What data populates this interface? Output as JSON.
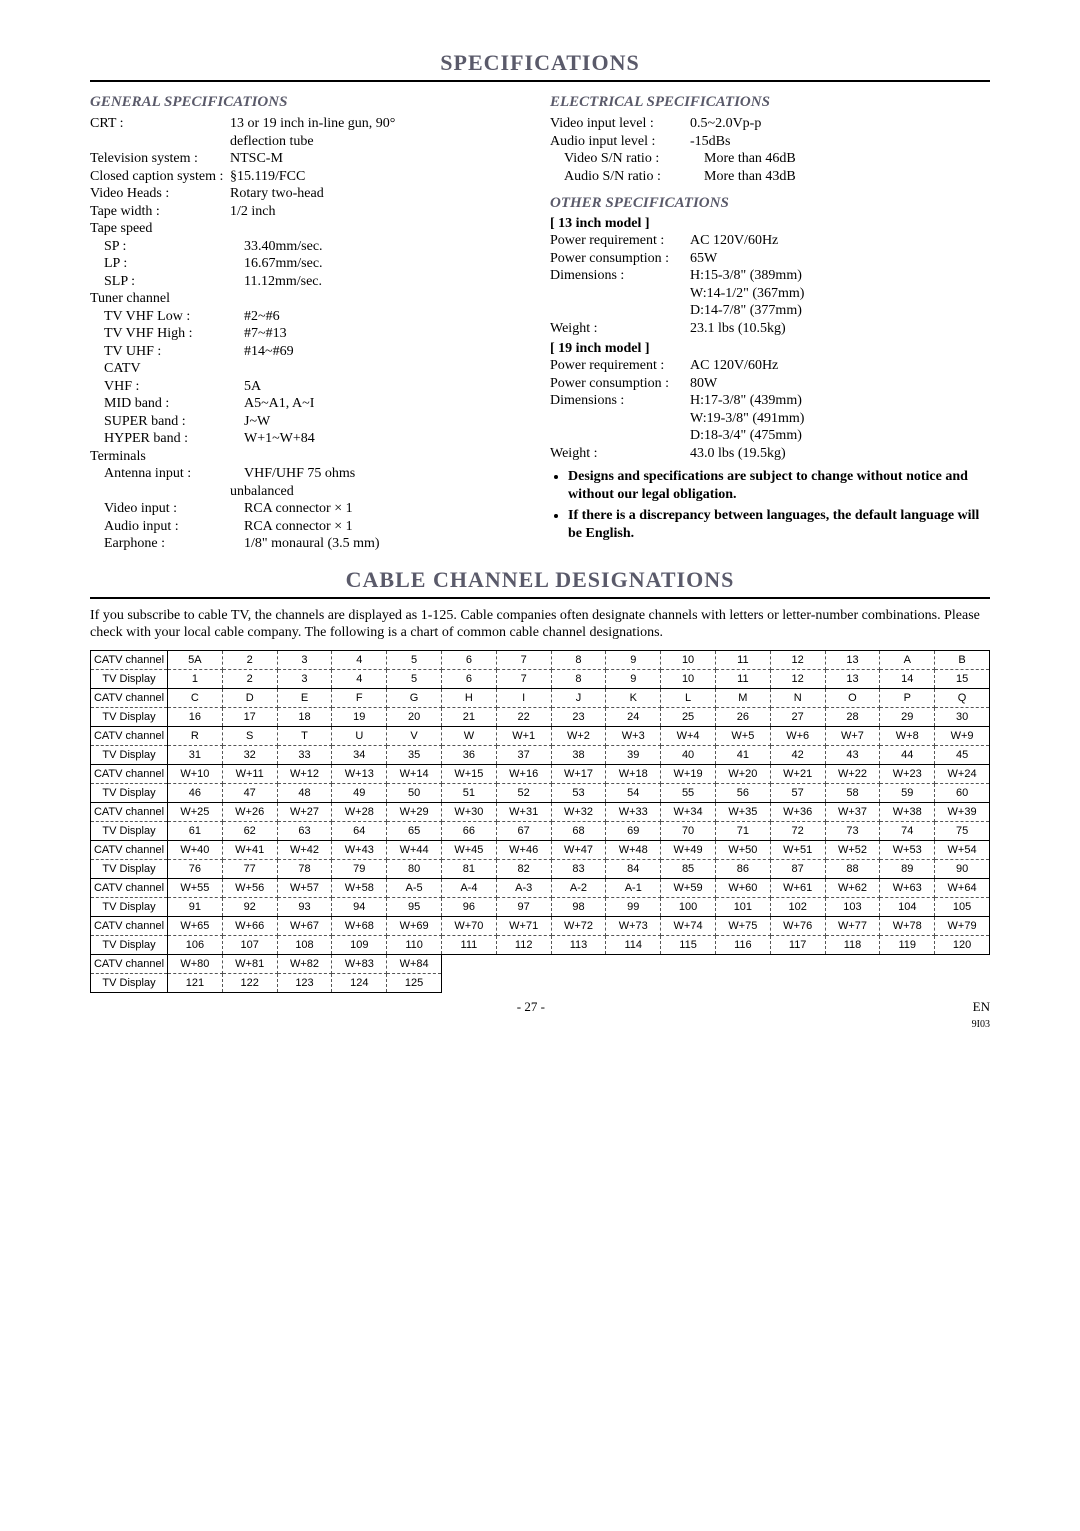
{
  "title": "SPECIFICATIONS",
  "general": {
    "heading": "GENERAL SPECIFICATIONS",
    "rows": [
      {
        "label": "CRT :",
        "val": "13 or 19 inch in-line gun, 90°"
      },
      {
        "label": "",
        "val": "deflection tube"
      },
      {
        "label": "Television system :",
        "val": "NTSC-M"
      },
      {
        "label": "Closed caption system :",
        "val": "§15.119/FCC"
      },
      {
        "label": "Video Heads :",
        "val": "Rotary two-head"
      },
      {
        "label": "Tape width :",
        "val": "1/2 inch"
      },
      {
        "label": "Tape speed",
        "val": ""
      },
      {
        "label": "SP :",
        "indent": 1,
        "val": "33.40mm/sec."
      },
      {
        "label": "LP :",
        "indent": 1,
        "val": "16.67mm/sec."
      },
      {
        "label": "SLP :",
        "indent": 1,
        "val": "11.12mm/sec."
      },
      {
        "label": "Tuner channel",
        "val": ""
      },
      {
        "label": "TV VHF Low :",
        "indent": 1,
        "val": "#2~#6"
      },
      {
        "label": "TV VHF High :",
        "indent": 1,
        "val": "#7~#13"
      },
      {
        "label": "TV UHF :",
        "indent": 1,
        "val": "#14~#69"
      },
      {
        "label": "CATV",
        "indent": 1,
        "val": ""
      },
      {
        "label": "VHF :",
        "indent": 1,
        "val": "5A"
      },
      {
        "label": "MID band :",
        "indent": 1,
        "val": "A5~A1, A~I"
      },
      {
        "label": "SUPER band :",
        "indent": 1,
        "val": "J~W"
      },
      {
        "label": "HYPER band :",
        "indent": 1,
        "val": "W+1~W+84"
      },
      {
        "label": "Terminals",
        "val": ""
      },
      {
        "label": "Antenna input :",
        "indent": 1,
        "val": "VHF/UHF 75 ohms"
      },
      {
        "label": "",
        "val": "unbalanced"
      },
      {
        "label": "Video input :",
        "indent": 1,
        "val": "RCA connector × 1"
      },
      {
        "label": "Audio input :",
        "indent": 1,
        "val": "RCA connector × 1"
      },
      {
        "label": "Earphone :",
        "indent": 1,
        "val": "1/8\" monaural (3.5 mm)"
      }
    ]
  },
  "electrical": {
    "heading": "ELECTRICAL SPECIFICATIONS",
    "rows": [
      {
        "label": "Video input level :",
        "val": "0.5~2.0Vp-p"
      },
      {
        "label": "Audio input level :",
        "val": "-15dBs"
      },
      {
        "label": "Video S/N ratio :",
        "indent": 1,
        "val": "More than 46dB"
      },
      {
        "label": "Audio S/N ratio :",
        "indent": 1,
        "val": "More than 43dB"
      }
    ]
  },
  "other": {
    "heading": "OTHER SPECIFICATIONS",
    "model13": {
      "title": "[ 13 inch model ]",
      "rows": [
        {
          "label": "Power requirement :",
          "val": "AC 120V/60Hz"
        },
        {
          "label": "Power consumption :",
          "val": "65W"
        },
        {
          "label": "Dimensions :",
          "val": "H:15-3/8\" (389mm)"
        },
        {
          "label": "",
          "val": "W:14-1/2\" (367mm)"
        },
        {
          "label": "",
          "val": "D:14-7/8\" (377mm)"
        },
        {
          "label": "Weight :",
          "val": "23.1 lbs (10.5kg)"
        }
      ]
    },
    "model19": {
      "title": "[ 19 inch model ]",
      "rows": [
        {
          "label": "Power requirement :",
          "val": "AC 120V/60Hz"
        },
        {
          "label": "Power consumption :",
          "val": "80W"
        },
        {
          "label": "Dimensions :",
          "val": "H:17-3/8\" (439mm)"
        },
        {
          "label": "",
          "val": "W:19-3/8\" (491mm)"
        },
        {
          "label": "",
          "val": "D:18-3/4\" (475mm)"
        },
        {
          "label": "Weight :",
          "val": "43.0 lbs (19.5kg)"
        }
      ]
    }
  },
  "notes": [
    "Designs and specifications are subject to change without notice and without our legal obligation.",
    "If there is a discrepancy between languages, the default language will be English."
  ],
  "cable": {
    "title": "CABLE CHANNEL DESIGNATIONS",
    "intro": "If you subscribe to cable TV, the channels are displayed as 1-125. Cable companies often designate channels with letters or letter-number combinations. Please check with your local cable company. The following is a chart of common cable channel designations.",
    "labels": {
      "catv": "CATV channel",
      "tv": "TV Display"
    },
    "pairs": [
      {
        "catv": [
          "5A",
          "2",
          "3",
          "4",
          "5",
          "6",
          "7",
          "8",
          "9",
          "10",
          "11",
          "12",
          "13",
          "A",
          "B"
        ],
        "tv": [
          "1",
          "2",
          "3",
          "4",
          "5",
          "6",
          "7",
          "8",
          "9",
          "10",
          "11",
          "12",
          "13",
          "14",
          "15"
        ]
      },
      {
        "catv": [
          "C",
          "D",
          "E",
          "F",
          "G",
          "H",
          "I",
          "J",
          "K",
          "L",
          "M",
          "N",
          "O",
          "P",
          "Q"
        ],
        "tv": [
          "16",
          "17",
          "18",
          "19",
          "20",
          "21",
          "22",
          "23",
          "24",
          "25",
          "26",
          "27",
          "28",
          "29",
          "30"
        ]
      },
      {
        "catv": [
          "R",
          "S",
          "T",
          "U",
          "V",
          "W",
          "W+1",
          "W+2",
          "W+3",
          "W+4",
          "W+5",
          "W+6",
          "W+7",
          "W+8",
          "W+9"
        ],
        "tv": [
          "31",
          "32",
          "33",
          "34",
          "35",
          "36",
          "37",
          "38",
          "39",
          "40",
          "41",
          "42",
          "43",
          "44",
          "45"
        ]
      },
      {
        "catv": [
          "W+10",
          "W+11",
          "W+12",
          "W+13",
          "W+14",
          "W+15",
          "W+16",
          "W+17",
          "W+18",
          "W+19",
          "W+20",
          "W+21",
          "W+22",
          "W+23",
          "W+24"
        ],
        "tv": [
          "46",
          "47",
          "48",
          "49",
          "50",
          "51",
          "52",
          "53",
          "54",
          "55",
          "56",
          "57",
          "58",
          "59",
          "60"
        ]
      },
      {
        "catv": [
          "W+25",
          "W+26",
          "W+27",
          "W+28",
          "W+29",
          "W+30",
          "W+31",
          "W+32",
          "W+33",
          "W+34",
          "W+35",
          "W+36",
          "W+37",
          "W+38",
          "W+39"
        ],
        "tv": [
          "61",
          "62",
          "63",
          "64",
          "65",
          "66",
          "67",
          "68",
          "69",
          "70",
          "71",
          "72",
          "73",
          "74",
          "75"
        ]
      },
      {
        "catv": [
          "W+40",
          "W+41",
          "W+42",
          "W+43",
          "W+44",
          "W+45",
          "W+46",
          "W+47",
          "W+48",
          "W+49",
          "W+50",
          "W+51",
          "W+52",
          "W+53",
          "W+54"
        ],
        "tv": [
          "76",
          "77",
          "78",
          "79",
          "80",
          "81",
          "82",
          "83",
          "84",
          "85",
          "86",
          "87",
          "88",
          "89",
          "90"
        ]
      },
      {
        "catv": [
          "W+55",
          "W+56",
          "W+57",
          "W+58",
          "A-5",
          "A-4",
          "A-3",
          "A-2",
          "A-1",
          "W+59",
          "W+60",
          "W+61",
          "W+62",
          "W+63",
          "W+64"
        ],
        "tv": [
          "91",
          "92",
          "93",
          "94",
          "95",
          "96",
          "97",
          "98",
          "99",
          "100",
          "101",
          "102",
          "103",
          "104",
          "105"
        ]
      },
      {
        "catv": [
          "W+65",
          "W+66",
          "W+67",
          "W+68",
          "W+69",
          "W+70",
          "W+71",
          "W+72",
          "W+73",
          "W+74",
          "W+75",
          "W+76",
          "W+77",
          "W+78",
          "W+79"
        ],
        "tv": [
          "106",
          "107",
          "108",
          "109",
          "110",
          "111",
          "112",
          "113",
          "114",
          "115",
          "116",
          "117",
          "118",
          "119",
          "120"
        ]
      },
      {
        "catv": [
          "W+80",
          "W+81",
          "W+82",
          "W+83",
          "W+84",
          "",
          "",
          "",
          "",
          "",
          "",
          "",
          "",
          "",
          ""
        ],
        "tv": [
          "121",
          "122",
          "123",
          "124",
          "125",
          "",
          "",
          "",
          "",
          "",
          "",
          "",
          "",
          "",
          ""
        ]
      }
    ]
  },
  "footer": {
    "page": "- 27 -",
    "lang": "EN",
    "code": "9I03"
  }
}
